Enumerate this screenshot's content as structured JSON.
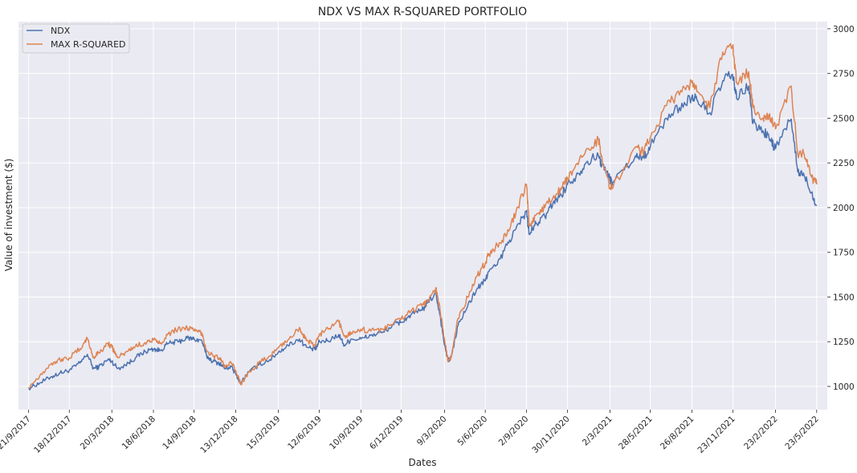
{
  "chart_data": {
    "type": "line",
    "title": "NDX VS MAX R-SQUARED PORTFOLIO",
    "xlabel": "Dates",
    "ylabel": "Value of investment ($)",
    "ylim": [
      870,
      3040
    ],
    "y_ticks": [
      1000,
      1250,
      1500,
      1750,
      2000,
      2250,
      2500,
      2750,
      3000
    ],
    "y_axis_side": "right",
    "x_ticks": [
      "21/9/2017",
      "18/12/2017",
      "20/3/2018",
      "18/6/2018",
      "14/9/2018",
      "13/12/2018",
      "15/3/2019",
      "12/6/2019",
      "10/9/2019",
      "6/12/2019",
      "9/3/2020",
      "5/6/2020",
      "2/9/2020",
      "30/11/2020",
      "2/3/2021",
      "28/5/2021",
      "26/8/2021",
      "23/11/2021",
      "23/2/2022",
      "23/5/2022"
    ],
    "x_tick_rotation": 45,
    "grid": true,
    "legend_position": "top-left",
    "background": "#eaeaf2",
    "series": [
      {
        "name": "NDX",
        "color": "#4c72b0",
        "x": [
          "21/9/2017",
          "15/10/2017",
          "10/11/2017",
          "28/11/2017",
          "18/12/2017",
          "10/1/2018",
          "26/1/2018",
          "8/2/2018",
          "20/2/2018",
          "12/3/2018",
          "20/3/2018",
          "2/4/2018",
          "25/4/2018",
          "10/5/2018",
          "31/5/2018",
          "18/6/2018",
          "2/7/2018",
          "20/7/2018",
          "10/8/2018",
          "30/8/2018",
          "14/9/2018",
          "1/10/2018",
          "11/10/2018",
          "25/10/2018",
          "8/11/2018",
          "20/11/2018",
          "3/12/2018",
          "13/12/2018",
          "24/12/2018",
          "10/1/2019",
          "1/2/2019",
          "25/2/2019",
          "15/3/2019",
          "5/4/2019",
          "30/4/2019",
          "15/5/2019",
          "3/6/2019",
          "12/6/2019",
          "1/7/2019",
          "24/7/2019",
          "5/8/2019",
          "20/8/2019",
          "10/9/2019",
          "1/10/2019",
          "25/10/2019",
          "20/11/2019",
          "6/12/2019",
          "27/12/2019",
          "20/1/2020",
          "31/1/2020",
          "19/2/2020",
          "28/2/2020",
          "9/3/2020",
          "16/3/2020",
          "23/3/2020",
          "7/4/2020",
          "28/4/2020",
          "19/5/2020",
          "5/6/2020",
          "11/6/2020",
          "1/7/2020",
          "22/7/2020",
          "10/8/2020",
          "2/9/2020",
          "8/9/2020",
          "23/9/2020",
          "12/10/2020",
          "30/10/2020",
          "16/11/2020",
          "30/11/2020",
          "23/12/2020",
          "12/1/2021",
          "5/2/2021",
          "12/2/2021",
          "2/3/2021",
          "8/3/2021",
          "26/4/2021",
          "12/5/2021",
          "28/5/2021",
          "2/7/2021",
          "30/7/2021",
          "26/8/2021",
          "7/9/2021",
          "4/10/2021",
          "1/11/2021",
          "22/11/2021",
          "1/12/2021",
          "27/12/2021",
          "5/1/2022",
          "27/1/2022",
          "9/2/2022",
          "23/2/2022",
          "29/3/2022",
          "12/4/2022",
          "26/4/2022",
          "12/5/2022",
          "23/5/2022"
        ],
        "values": [
          990,
          1020,
          1055,
          1075,
          1090,
          1130,
          1180,
          1100,
          1110,
          1150,
          1140,
          1100,
          1130,
          1160,
          1195,
          1210,
          1200,
          1240,
          1250,
          1270,
          1265,
          1255,
          1170,
          1140,
          1130,
          1100,
          1110,
          1070,
          1020,
          1080,
          1120,
          1150,
          1190,
          1230,
          1265,
          1220,
          1205,
          1250,
          1255,
          1290,
          1230,
          1265,
          1265,
          1285,
          1300,
          1345,
          1360,
          1400,
          1425,
          1465,
          1520,
          1400,
          1230,
          1145,
          1160,
          1340,
          1450,
          1550,
          1590,
          1640,
          1680,
          1790,
          1880,
          1980,
          1850,
          1910,
          1950,
          2030,
          2070,
          2130,
          2190,
          2260,
          2290,
          2240,
          2160,
          2140,
          2290,
          2280,
          2340,
          2500,
          2560,
          2620,
          2600,
          2530,
          2710,
          2745,
          2610,
          2680,
          2470,
          2430,
          2390,
          2330,
          2495,
          2200,
          2180,
          2085,
          2010
        ]
      },
      {
        "name": "MAX R-SQUARED",
        "color": "#dd8452",
        "x": [
          "21/9/2017",
          "15/10/2017",
          "10/11/2017",
          "28/11/2017",
          "18/12/2017",
          "10/1/2018",
          "26/1/2018",
          "8/2/2018",
          "20/2/2018",
          "12/3/2018",
          "20/3/2018",
          "2/4/2018",
          "25/4/2018",
          "10/5/2018",
          "31/5/2018",
          "18/6/2018",
          "2/7/2018",
          "20/7/2018",
          "10/8/2018",
          "30/8/2018",
          "14/9/2018",
          "1/10/2018",
          "11/10/2018",
          "25/10/2018",
          "8/11/2018",
          "20/11/2018",
          "3/12/2018",
          "13/12/2018",
          "24/12/2018",
          "10/1/2019",
          "1/2/2019",
          "25/2/2019",
          "15/3/2019",
          "5/4/2019",
          "30/4/2019",
          "15/5/2019",
          "3/6/2019",
          "12/6/2019",
          "1/7/2019",
          "24/7/2019",
          "5/8/2019",
          "20/8/2019",
          "10/9/2019",
          "1/10/2019",
          "25/10/2019",
          "20/11/2019",
          "6/12/2019",
          "27/12/2019",
          "20/1/2020",
          "31/1/2020",
          "19/2/2020",
          "28/2/2020",
          "9/3/2020",
          "16/3/2020",
          "23/3/2020",
          "7/4/2020",
          "28/4/2020",
          "19/5/2020",
          "5/6/2020",
          "11/6/2020",
          "1/7/2020",
          "22/7/2020",
          "10/8/2020",
          "2/9/2020",
          "8/9/2020",
          "23/9/2020",
          "12/10/2020",
          "30/10/2020",
          "16/11/2020",
          "30/11/2020",
          "23/12/2020",
          "12/1/2021",
          "5/2/2021",
          "12/2/2021",
          "2/3/2021",
          "8/3/2021",
          "26/4/2021",
          "12/5/2021",
          "28/5/2021",
          "2/7/2021",
          "30/7/2021",
          "26/8/2021",
          "7/9/2021",
          "4/10/2021",
          "1/11/2021",
          "22/11/2021",
          "1/12/2021",
          "27/12/2021",
          "5/1/2022",
          "27/1/2022",
          "9/2/2022",
          "23/2/2022",
          "29/3/2022",
          "12/4/2022",
          "26/4/2022",
          "12/5/2022",
          "23/5/2022"
        ],
        "values": [
          995,
          1060,
          1130,
          1150,
          1160,
          1210,
          1270,
          1160,
          1190,
          1240,
          1220,
          1160,
          1200,
          1225,
          1245,
          1260,
          1240,
          1295,
          1320,
          1330,
          1310,
          1300,
          1200,
          1170,
          1160,
          1110,
          1130,
          1090,
          1010,
          1080,
          1130,
          1170,
          1215,
          1260,
          1330,
          1255,
          1230,
          1290,
          1320,
          1360,
          1280,
          1300,
          1320,
          1310,
          1320,
          1355,
          1380,
          1420,
          1450,
          1480,
          1550,
          1430,
          1260,
          1140,
          1160,
          1380,
          1500,
          1620,
          1690,
          1730,
          1790,
          1850,
          1970,
          2130,
          1900,
          1960,
          2000,
          2060,
          2100,
          2160,
          2240,
          2330,
          2380,
          2290,
          2110,
          2110,
          2340,
          2310,
          2390,
          2570,
          2630,
          2700,
          2650,
          2560,
          2870,
          2900,
          2700,
          2760,
          2560,
          2500,
          2520,
          2440,
          2680,
          2300,
          2300,
          2170,
          2130
        ]
      }
    ]
  }
}
